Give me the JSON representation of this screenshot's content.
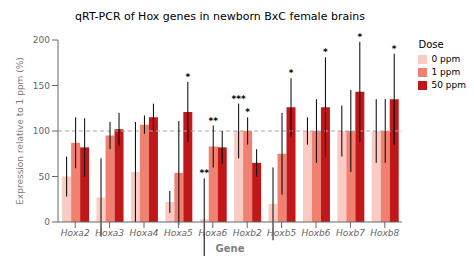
{
  "chart_data": {
    "type": "bar",
    "title": "qRT-PCR of Hox genes in newborn BxC female brains",
    "x_label": "Gene",
    "y_label": "Expression relative to 1 ppm (%)",
    "categories": [
      "Hoxa2",
      "Hoxa3",
      "Hoxa4",
      "Hoxa5",
      "Hoxa6",
      "Hoxb2",
      "Hoxb5",
      "Hoxb6",
      "Hoxb7",
      "Hoxb8"
    ],
    "series": [
      {
        "name": "0 ppm",
        "color": "#f9cbc4",
        "values": [
          50,
          27,
          55,
          22,
          3,
          100,
          20,
          100,
          100,
          100
        ],
        "errors": [
          22,
          43,
          55,
          12,
          45,
          30,
          40,
          15,
          28,
          35
        ]
      },
      {
        "name": "1 ppm",
        "color": "#f08070",
        "values": [
          87,
          95,
          107,
          54,
          83,
          100,
          75,
          100,
          100,
          100
        ],
        "errors": [
          28,
          15,
          10,
          57,
          23,
          15,
          45,
          35,
          45,
          35
        ]
      },
      {
        "name": "50 ppm",
        "color": "#c01818",
        "values": [
          82,
          102,
          115,
          121,
          82,
          65,
          126,
          126,
          143,
          135
        ],
        "errors": [
          32,
          18,
          15,
          33,
          18,
          15,
          32,
          55,
          55,
          50
        ]
      }
    ],
    "ylim": [
      0,
      200
    ],
    "yticks": [
      0,
      50,
      100,
      150,
      200
    ],
    "reference_lines": [
      {
        "y": 100,
        "line_style": "dashed"
      }
    ],
    "annotations": [
      {
        "category": "Hoxa5",
        "series": "50 ppm",
        "text": "*"
      },
      {
        "category": "Hoxa6",
        "series": "0 ppm",
        "text": "**"
      },
      {
        "category": "Hoxa6",
        "series": "1 ppm",
        "text": "**"
      },
      {
        "category": "Hoxb2",
        "series": "0 ppm",
        "text": "***"
      },
      {
        "category": "Hoxb2",
        "series": "1 ppm",
        "text": "*"
      },
      {
        "category": "Hoxb5",
        "series": "50 ppm",
        "text": "*"
      },
      {
        "category": "Hoxb6",
        "series": "50 ppm",
        "text": "*"
      },
      {
        "category": "Hoxb7",
        "series": "50 ppm",
        "text": "*"
      },
      {
        "category": "Hoxb8",
        "series": "50 ppm",
        "text": "*"
      }
    ],
    "legend_title": "Dose",
    "legend": "upper right",
    "grid": false
  }
}
